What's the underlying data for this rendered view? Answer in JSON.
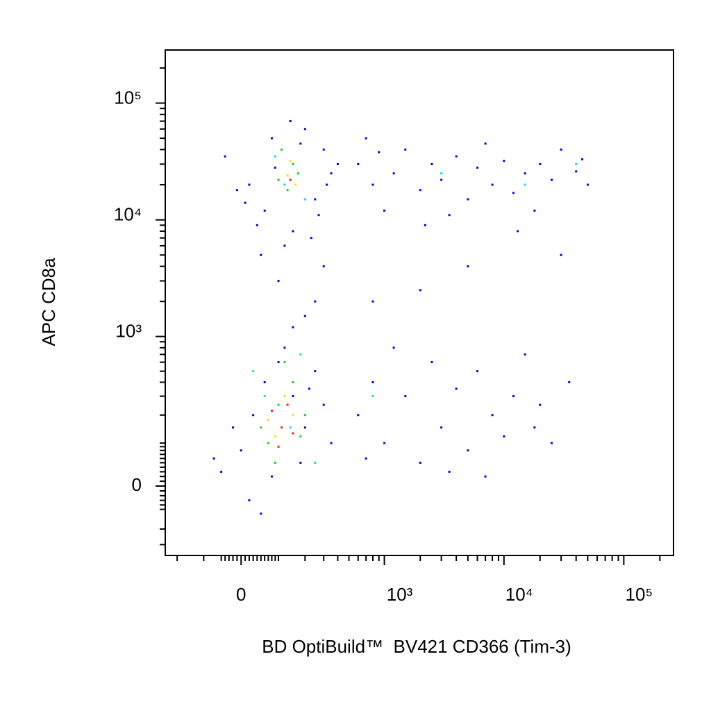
{
  "chart_data": {
    "type": "scatter",
    "xlabel": "BD OptiBuild™  BV421 CD366 (Tim-3)",
    "ylabel": "APC CD8a",
    "xscale": "logicle",
    "yscale": "logicle",
    "xlim": [
      -260,
      260000
    ],
    "ylim": [
      -193,
      285000
    ],
    "xticks": [
      0,
      {
        "value": 1000,
        "label": "10³"
      },
      {
        "value": 10000,
        "label": "10⁴"
      },
      {
        "value": 100000,
        "label": "10⁵"
      }
    ],
    "yticks": [
      0,
      {
        "value": 1000,
        "label": "10³"
      },
      {
        "value": 10000,
        "label": "10⁴"
      },
      {
        "value": 100000,
        "label": "10⁵"
      }
    ],
    "xminorticks": [
      -200,
      -100,
      -50,
      -40,
      -30,
      -20,
      -10,
      10,
      20,
      30,
      40,
      50,
      60,
      70,
      80,
      90,
      100,
      200,
      300,
      400,
      500,
      600,
      700,
      800,
      900,
      2000,
      3000,
      4000,
      5000,
      6000,
      7000,
      8000,
      9000,
      20000,
      30000,
      40000,
      50000,
      60000,
      70000,
      80000,
      90000,
      200000
    ],
    "yminorticks": [
      -150,
      -100,
      -50,
      -40,
      -30,
      -20,
      -10,
      10,
      20,
      30,
      40,
      50,
      60,
      70,
      80,
      90,
      100,
      200,
      300,
      400,
      500,
      600,
      700,
      800,
      900,
      2000,
      3000,
      4000,
      5000,
      6000,
      7000,
      8000,
      9000,
      20000,
      30000,
      40000,
      50000,
      60000,
      70000,
      80000,
      90000,
      200000
    ],
    "groups": [
      {
        "color": "#0000ff",
        "points": [
          [
            20,
            20000
          ],
          [
            -40,
            35000
          ],
          [
            60,
            12000
          ],
          [
            250,
            15000
          ],
          [
            300,
            40000
          ],
          [
            150,
            8000
          ],
          [
            80,
            50000
          ],
          [
            350,
            25000
          ],
          [
            -10,
            18000
          ],
          [
            200,
            60000
          ],
          [
            120,
            6000
          ],
          [
            400,
            30000
          ],
          [
            40,
            9000
          ],
          [
            270,
            11000
          ],
          [
            180,
            45000
          ],
          [
            90,
            28000
          ],
          [
            320,
            20000
          ],
          [
            10,
            14000
          ],
          [
            230,
            7000
          ],
          [
            140,
            70000
          ],
          [
            600,
            30000
          ],
          [
            800,
            20000
          ],
          [
            1200,
            25000
          ],
          [
            1500,
            40000
          ],
          [
            2000,
            18000
          ],
          [
            2500,
            30000
          ],
          [
            3000,
            22000
          ],
          [
            4000,
            35000
          ],
          [
            5000,
            15000
          ],
          [
            6000,
            28000
          ],
          [
            8000,
            20000
          ],
          [
            10000,
            32000
          ],
          [
            12000,
            17000
          ],
          [
            15000,
            25000
          ],
          [
            20000,
            30000
          ],
          [
            25000,
            22000
          ],
          [
            30000,
            40000
          ],
          [
            40000,
            26000
          ],
          [
            50000,
            20000
          ],
          [
            700,
            50000
          ],
          [
            1000,
            12000
          ],
          [
            3500,
            11000
          ],
          [
            7000,
            45000
          ],
          [
            18000,
            12000
          ],
          [
            45000,
            33000
          ],
          [
            900,
            38000
          ],
          [
            2200,
            9000
          ],
          [
            13000,
            8000
          ],
          [
            100,
            3000
          ],
          [
            200,
            1500
          ],
          [
            50,
            5000
          ],
          [
            250,
            2000
          ],
          [
            150,
            1200
          ],
          [
            300,
            4000
          ],
          [
            2000,
            2500
          ],
          [
            5000,
            4000
          ],
          [
            30000,
            5000
          ],
          [
            800,
            2000
          ],
          [
            -50,
            30
          ],
          [
            0,
            80
          ],
          [
            30,
            200
          ],
          [
            60,
            400
          ],
          [
            100,
            600
          ],
          [
            150,
            300
          ],
          [
            200,
            150
          ],
          [
            250,
            500
          ],
          [
            300,
            250
          ],
          [
            -20,
            150
          ],
          [
            80,
            20
          ],
          [
            120,
            800
          ],
          [
            180,
            50
          ],
          [
            220,
            350
          ],
          [
            350,
            100
          ],
          [
            20,
            -30
          ],
          [
            -70,
            60
          ],
          [
            50,
            -60
          ],
          [
            600,
            200
          ],
          [
            800,
            400
          ],
          [
            1000,
            100
          ],
          [
            1500,
            300
          ],
          [
            2000,
            50
          ],
          [
            2500,
            600
          ],
          [
            3000,
            150
          ],
          [
            4000,
            350
          ],
          [
            5000,
            80
          ],
          [
            6000,
            500
          ],
          [
            8000,
            200
          ],
          [
            10000,
            120
          ],
          [
            12000,
            300
          ],
          [
            15000,
            700
          ],
          [
            20000,
            250
          ],
          [
            25000,
            100
          ],
          [
            35000,
            400
          ],
          [
            1200,
            800
          ],
          [
            3500,
            30
          ],
          [
            7000,
            20
          ],
          [
            18000,
            150
          ],
          [
            700,
            60
          ]
        ]
      },
      {
        "color": "#00e0ff",
        "points": [
          [
            120,
            20000
          ],
          [
            90,
            35000
          ],
          [
            200,
            15000
          ],
          [
            60,
            300
          ],
          [
            140,
            150
          ],
          [
            30,
            500
          ],
          [
            180,
            700
          ],
          [
            3000,
            25000
          ],
          [
            15000,
            20000
          ],
          [
            800,
            300
          ],
          [
            40000,
            30000
          ],
          [
            250,
            50
          ]
        ]
      },
      {
        "color": "#22cc22",
        "points": [
          [
            100,
            22000
          ],
          [
            150,
            30000
          ],
          [
            130,
            18000
          ],
          [
            170,
            25000
          ],
          [
            110,
            40000
          ],
          [
            70,
            100
          ],
          [
            100,
            250
          ],
          [
            150,
            400
          ],
          [
            50,
            150
          ],
          [
            200,
            200
          ],
          [
            120,
            600
          ],
          [
            90,
            50
          ],
          [
            180,
            120
          ]
        ]
      },
      {
        "color": "#e8e800",
        "points": [
          [
            130,
            24000
          ],
          [
            160,
            20000
          ],
          [
            140,
            32000
          ],
          [
            90,
            120
          ],
          [
            120,
            300
          ],
          [
            150,
            200
          ],
          [
            70,
            180
          ]
        ]
      },
      {
        "color": "#ff2000",
        "points": [
          [
            140,
            22000
          ],
          [
            110,
            150
          ],
          [
            130,
            250
          ],
          [
            100,
            90
          ],
          [
            150,
            130
          ],
          [
            80,
            220
          ]
        ]
      }
    ]
  }
}
